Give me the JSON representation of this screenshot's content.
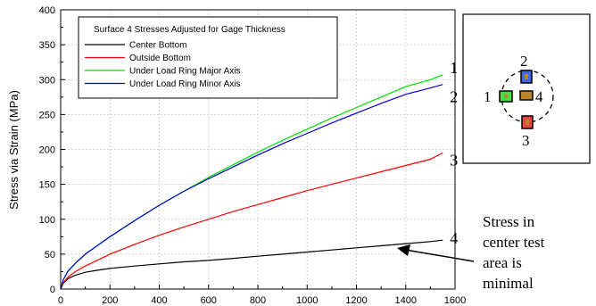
{
  "chart_data": {
    "type": "line",
    "title": "",
    "xlabel": "",
    "ylabel": "Stress via Strain (MPa)",
    "xlim": [
      0,
      1600
    ],
    "ylim": [
      0,
      400
    ],
    "x_ticks": [
      "0",
      "200",
      "400",
      "600",
      "800",
      "1000",
      "1200",
      "1400",
      "1600"
    ],
    "y_ticks": [
      "0",
      "50",
      "100",
      "150",
      "200",
      "250",
      "300",
      "350",
      "400"
    ],
    "grid": true,
    "legend": {
      "title": "Surface 4 Stresses Adjusted for Gage Thickness",
      "position": "top-left"
    },
    "series": [
      {
        "name": "Center Bottom",
        "color": "#000000",
        "end_label": "4",
        "x": [
          0,
          10,
          30,
          60,
          100,
          150,
          200,
          300,
          400,
          500,
          600,
          700,
          800,
          900,
          1000,
          1100,
          1200,
          1300,
          1400,
          1500,
          1550
        ],
        "y": [
          0,
          8,
          15,
          20,
          24,
          27,
          29.5,
          33,
          36,
          39,
          41,
          44,
          47,
          50,
          53,
          56,
          59,
          62,
          65,
          68,
          70
        ]
      },
      {
        "name": "Outside Bottom",
        "color": "#ff0000",
        "end_label": "3",
        "x": [
          0,
          10,
          30,
          60,
          100,
          200,
          300,
          400,
          500,
          600,
          700,
          800,
          900,
          1000,
          1100,
          1200,
          1300,
          1400,
          1500,
          1550
        ],
        "y": [
          0,
          9,
          17,
          25,
          33,
          50,
          64,
          77,
          89,
          100,
          111,
          121,
          131,
          141,
          150,
          159,
          168,
          177,
          186,
          195
        ]
      },
      {
        "name": "Under Load Ring Major Axis",
        "color": "#00dd00",
        "end_label": "1",
        "x": [
          0,
          10,
          30,
          60,
          100,
          200,
          300,
          400,
          500,
          600,
          700,
          800,
          900,
          1000,
          1100,
          1200,
          1300,
          1400,
          1500,
          1550
        ],
        "y": [
          0,
          13,
          26,
          37,
          50,
          75,
          98,
          120,
          140,
          160,
          178,
          196,
          213,
          229,
          245,
          260,
          275,
          290,
          300,
          307
        ]
      },
      {
        "name": "Under Load Ring Minor Axis",
        "color": "#0000cc",
        "end_label": "2",
        "x": [
          0,
          10,
          30,
          60,
          100,
          200,
          300,
          400,
          500,
          600,
          700,
          800,
          900,
          1000,
          1100,
          1200,
          1300,
          1400,
          1500,
          1550
        ],
        "y": [
          0,
          13,
          26,
          37,
          50,
          75,
          98,
          120,
          140,
          158,
          175,
          192,
          208,
          223,
          238,
          252,
          266,
          279,
          288,
          293
        ]
      }
    ],
    "annotation": {
      "lines": [
        "Stress in",
        "center test",
        "area is",
        "minimal"
      ],
      "points_to_series": "Center Bottom"
    },
    "inset": {
      "labels": [
        "1",
        "2",
        "3",
        "4"
      ],
      "colors": {
        "gage1": "#44dd44",
        "gage2": "#4466ee",
        "gage3": "#ee4444",
        "gage4": "#b8862b",
        "core": "#c8902a"
      }
    }
  }
}
